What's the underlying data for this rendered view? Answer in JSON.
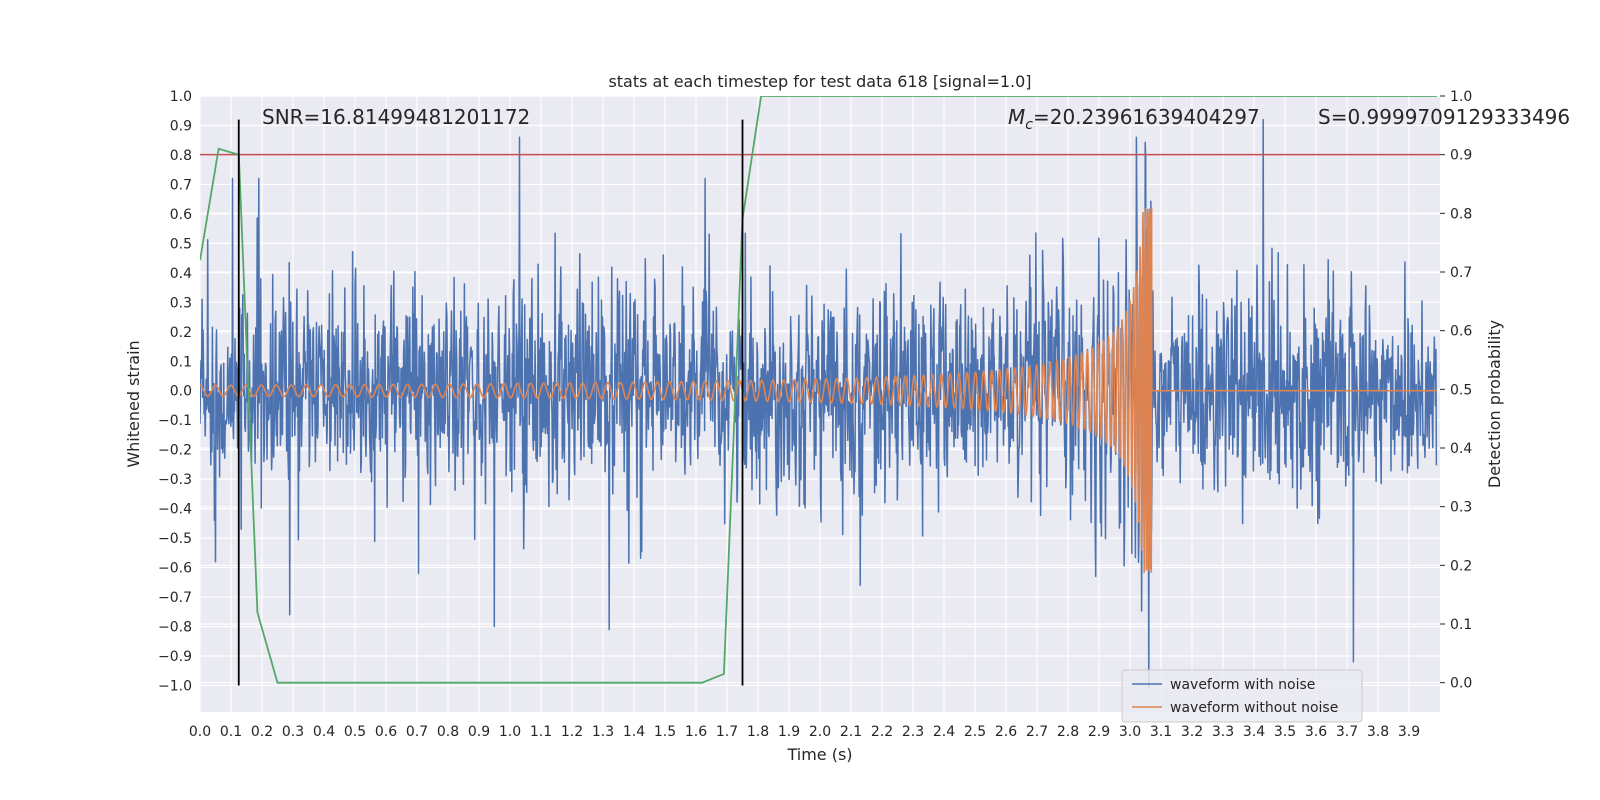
{
  "chart_data": {
    "type": "line",
    "title": "stats at each timestep for test data 618 [signal=1.0]",
    "xlabel": "Time (s)",
    "ylabel": "Whitened strain",
    "y2label": "Detection probability",
    "xlim": [
      0.0,
      4.0
    ],
    "ylim": [
      -1.09,
      1.0
    ],
    "y2lim": [
      -0.05,
      1.0
    ],
    "x_ticks": [
      0.0,
      0.1,
      0.2,
      0.3,
      0.4,
      0.5,
      0.6,
      0.7,
      0.8,
      0.9,
      1.0,
      1.1,
      1.2,
      1.3,
      1.4,
      1.5,
      1.6,
      1.7,
      1.8,
      1.9,
      2.0,
      2.1,
      2.2,
      2.3,
      2.4,
      2.5,
      2.6,
      2.7,
      2.8,
      2.9,
      3.0,
      3.1,
      3.2,
      3.3,
      3.4,
      3.5,
      3.6,
      3.7,
      3.8,
      3.9
    ],
    "x_tick_labels": [
      "0.0",
      "0.1",
      "0.2",
      "0.3",
      "0.4",
      "0.5",
      "0.6",
      "0.7",
      "0.8",
      "0.9",
      "1.0",
      "1.1",
      "1.2",
      "1.3",
      "1.4",
      "1.5",
      "1.6",
      "1.7",
      "1.8",
      "1.9",
      "2.0",
      "2.1",
      "2.2",
      "2.3",
      "2.4",
      "2.5",
      "2.6",
      "2.7",
      "2.8",
      "2.9",
      "3.0",
      "3.1",
      "3.2",
      "3.3",
      "3.4",
      "3.5",
      "3.6",
      "3.7",
      "3.8",
      "3.9"
    ],
    "y_ticks": [
      1.0,
      0.9,
      0.8,
      0.7,
      0.6,
      0.5,
      0.4,
      0.3,
      0.2,
      0.1,
      0.0,
      -0.1,
      -0.2,
      -0.3,
      -0.4,
      -0.5,
      -0.6,
      -0.7,
      -0.8,
      -0.9,
      -1.0
    ],
    "y_tick_labels": [
      "1.0",
      "0.9",
      "0.8",
      "0.7",
      "0.6",
      "0.5",
      "0.4",
      "0.3",
      "0.2",
      "0.1",
      "0.0",
      "−0.1",
      "−0.2",
      "−0.3",
      "−0.4",
      "−0.5",
      "−0.6",
      "−0.7",
      "−0.8",
      "−0.9",
      "−1.0"
    ],
    "y2_ticks": [
      1.0,
      0.9,
      0.8,
      0.7,
      0.6,
      0.5,
      0.4,
      0.3,
      0.2,
      0.1,
      0.0
    ],
    "y2_tick_labels": [
      "1.0",
      "0.9",
      "0.8",
      "0.7",
      "0.6",
      "0.5",
      "0.4",
      "0.3",
      "0.2",
      "0.1",
      "0.0"
    ],
    "grid": true,
    "legend_position": "lower-right",
    "annotations": {
      "snr": "SNR=16.81499481201172",
      "mc_symbol": "M",
      "mc_sub": "c",
      "mc_value": "=20.23961639404297",
      "s": "S=0.9999709129333496"
    },
    "series": [
      {
        "name": "waveform with noise",
        "color": "#4c72b0",
        "axis": "left",
        "noise_sigma": 0.17,
        "peaks": [
          {
            "x": 0.105,
            "y": 0.72
          },
          {
            "x": 0.19,
            "y": 0.72
          },
          {
            "x": 1.03,
            "y": 0.86
          },
          {
            "x": 1.63,
            "y": 0.72
          },
          {
            "x": 3.02,
            "y": 0.86
          },
          {
            "x": 3.43,
            "y": 0.92
          },
          {
            "x": 0.29,
            "y": -0.76
          },
          {
            "x": 0.95,
            "y": -0.8
          },
          {
            "x": 1.32,
            "y": -0.81
          },
          {
            "x": 3.06,
            "y": -1.01
          },
          {
            "x": 3.72,
            "y": -0.92
          },
          {
            "x": 2.89,
            "y": -0.63
          },
          {
            "x": 2.13,
            "y": -0.66
          },
          {
            "x": 0.05,
            "y": -0.58
          }
        ]
      },
      {
        "name": "waveform without noise",
        "color": "#dd8452",
        "axis": "left",
        "merger_time": 3.07,
        "start_amplitude": 0.018,
        "peak_amplitude": 0.62,
        "start_frequency_hz": 20
      },
      {
        "name": "detection probability",
        "color": "#55a868",
        "axis": "right",
        "x": [
          0.0,
          0.06,
          0.125,
          0.185,
          0.25,
          1.62,
          1.69,
          1.75,
          1.81,
          3.99
        ],
        "y": [
          0.72,
          0.91,
          0.9,
          0.12,
          0.0,
          0.0,
          0.015,
          0.79,
          1.0,
          1.0
        ]
      }
    ],
    "threshold_line": {
      "axis": "right",
      "y": 0.9,
      "color": "#c44e52"
    },
    "vertical_lines": {
      "x": [
        0.125,
        1.75
      ],
      "y_range": [
        -1.0,
        0.92
      ],
      "color": "#000000"
    }
  }
}
